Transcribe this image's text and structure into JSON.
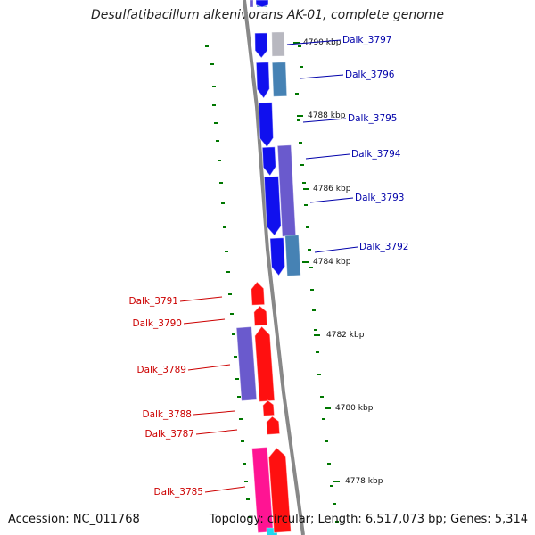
{
  "header": {
    "title": "Desulfatibacillum alkenivorans AK-01, complete genome"
  },
  "footer": {
    "accession": "Accession: NC_011768",
    "summary": "Topology: circular; Length: 6,517,073 bp; Genes: 5,314"
  },
  "colors": {
    "forward_gene": "#1010ee",
    "reverse_gene": "#ff1010",
    "forward_label": "#0000aa",
    "reverse_label": "#cc0000",
    "cds_purple": "#6a5acd",
    "cds_steel": "#4682b4",
    "cds_gray": "#b8b8c0",
    "cds_pink": "#ff1493",
    "backbone": "#888888",
    "gc_dots": "#007700"
  },
  "ruler": {
    "unit": "kbp",
    "ticks": [
      {
        "label": "4790 kbp"
      },
      {
        "label": "4788 kbp"
      },
      {
        "label": "4786 kbp"
      },
      {
        "label": "4784 kbp"
      },
      {
        "label": "4782 kbp"
      },
      {
        "label": "4780 kbp"
      },
      {
        "label": "4778 kbp"
      }
    ]
  },
  "genes": {
    "forward": [
      {
        "label": "Dalk_3797"
      },
      {
        "label": "Dalk_3796"
      },
      {
        "label": "Dalk_3795"
      },
      {
        "label": "Dalk_3794"
      },
      {
        "label": "Dalk_3793"
      },
      {
        "label": "Dalk_3792"
      }
    ],
    "reverse": [
      {
        "label": "Dalk_3791"
      },
      {
        "label": "Dalk_3790"
      },
      {
        "label": "Dalk_3789"
      },
      {
        "label": "Dalk_3788"
      },
      {
        "label": "Dalk_3787"
      },
      {
        "label": "Dalk_3785"
      }
    ]
  }
}
